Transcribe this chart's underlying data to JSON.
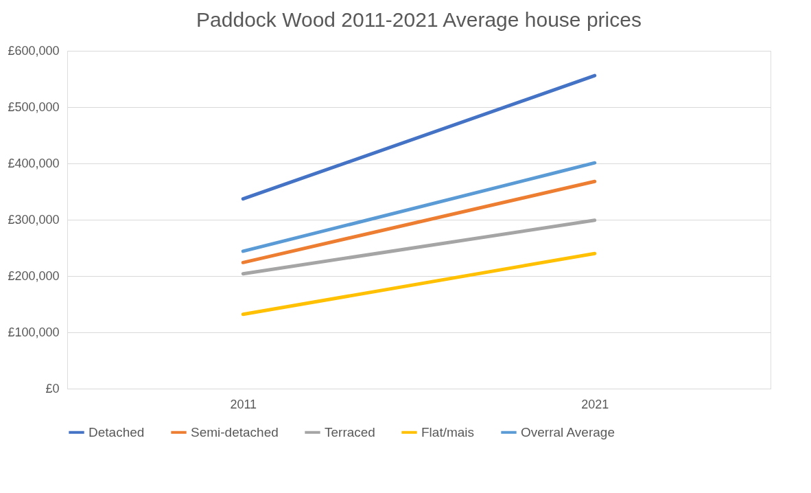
{
  "chart_data": {
    "type": "line",
    "title": "Paddock Wood 2011-2021 Average house prices",
    "categories": [
      "2011",
      "2021"
    ],
    "series": [
      {
        "name": "Detached",
        "color": "#4472c4",
        "values": [
          337000,
          556000
        ]
      },
      {
        "name": "Semi-detached",
        "color": "#ed7d31",
        "values": [
          224000,
          368000
        ]
      },
      {
        "name": "Terraced",
        "color": "#a5a5a5",
        "values": [
          204000,
          299000
        ]
      },
      {
        "name": "Flat/mais",
        "color": "#ffc000",
        "values": [
          132000,
          240000
        ]
      },
      {
        "name": "Overral Average",
        "color": "#5b9bd5",
        "values": [
          244000,
          401000
        ]
      }
    ],
    "ylim": [
      0,
      600000
    ],
    "yticks": [
      {
        "value": 0,
        "label": "£0"
      },
      {
        "value": 100000,
        "label": "£100,000"
      },
      {
        "value": 200000,
        "label": "£200,000"
      },
      {
        "value": 300000,
        "label": "£300,000"
      },
      {
        "value": 400000,
        "label": "£400,000"
      },
      {
        "value": 500000,
        "label": "£500,000"
      },
      {
        "value": 600000,
        "label": "£600,000"
      }
    ],
    "grid": "y",
    "legend": "bottom",
    "marker": "none",
    "line_style": "solid"
  }
}
